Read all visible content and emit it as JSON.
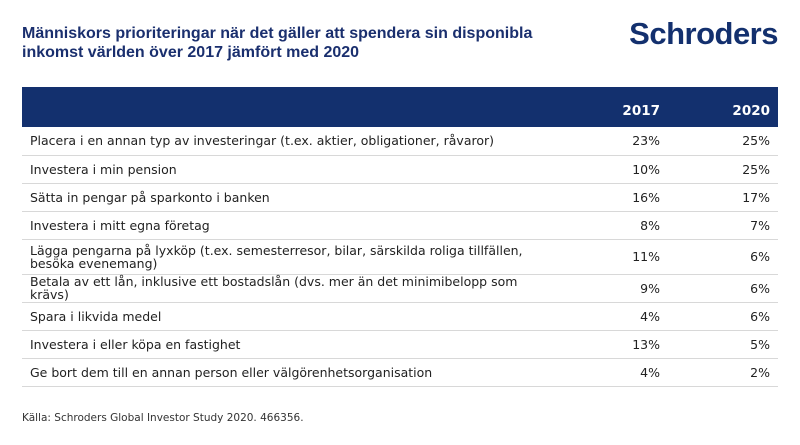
{
  "title": "Människors prioriteringar när det gäller att spendera sin disponibla inkomst världen över 2017 jämfört med 2020",
  "logo": "Schroders",
  "colors": {
    "brand": "#13306e"
  },
  "chart_data": {
    "type": "table",
    "columns": [
      "",
      "2017",
      "2020"
    ],
    "rows": [
      {
        "label": "Placera i en annan typ av investeringar (t.ex. aktier, obligationer, råvaror)",
        "v2017": "23%",
        "v2020": "25%"
      },
      {
        "label": "Investera i min pension",
        "v2017": "10%",
        "v2020": "25%"
      },
      {
        "label": "Sätta in pengar på sparkonto i banken",
        "v2017": "16%",
        "v2020": "17%"
      },
      {
        "label": "Investera i mitt egna företag",
        "v2017": "8%",
        "v2020": "7%"
      },
      {
        "label": "Lägga pengarna på lyxköp (t.ex. semesterresor, bilar, särskilda roliga tillfällen, besöka evenemang)",
        "v2017": "11%",
        "v2020": "6%"
      },
      {
        "label": "Betala av ett lån, inklusive ett bostadslån (dvs. mer än det minimibelopp som krävs)",
        "v2017": "9%",
        "v2020": "6%"
      },
      {
        "label": "Spara i likvida medel",
        "v2017": "4%",
        "v2020": "6%"
      },
      {
        "label": "Investera i eller köpa en fastighet",
        "v2017": "13%",
        "v2020": "5%"
      },
      {
        "label": "Ge bort dem till en annan person eller välgörenhetsorganisation",
        "v2017": "4%",
        "v2020": "2%"
      }
    ]
  },
  "source": "Källa: Schroders Global Investor Study 2020. 466356."
}
